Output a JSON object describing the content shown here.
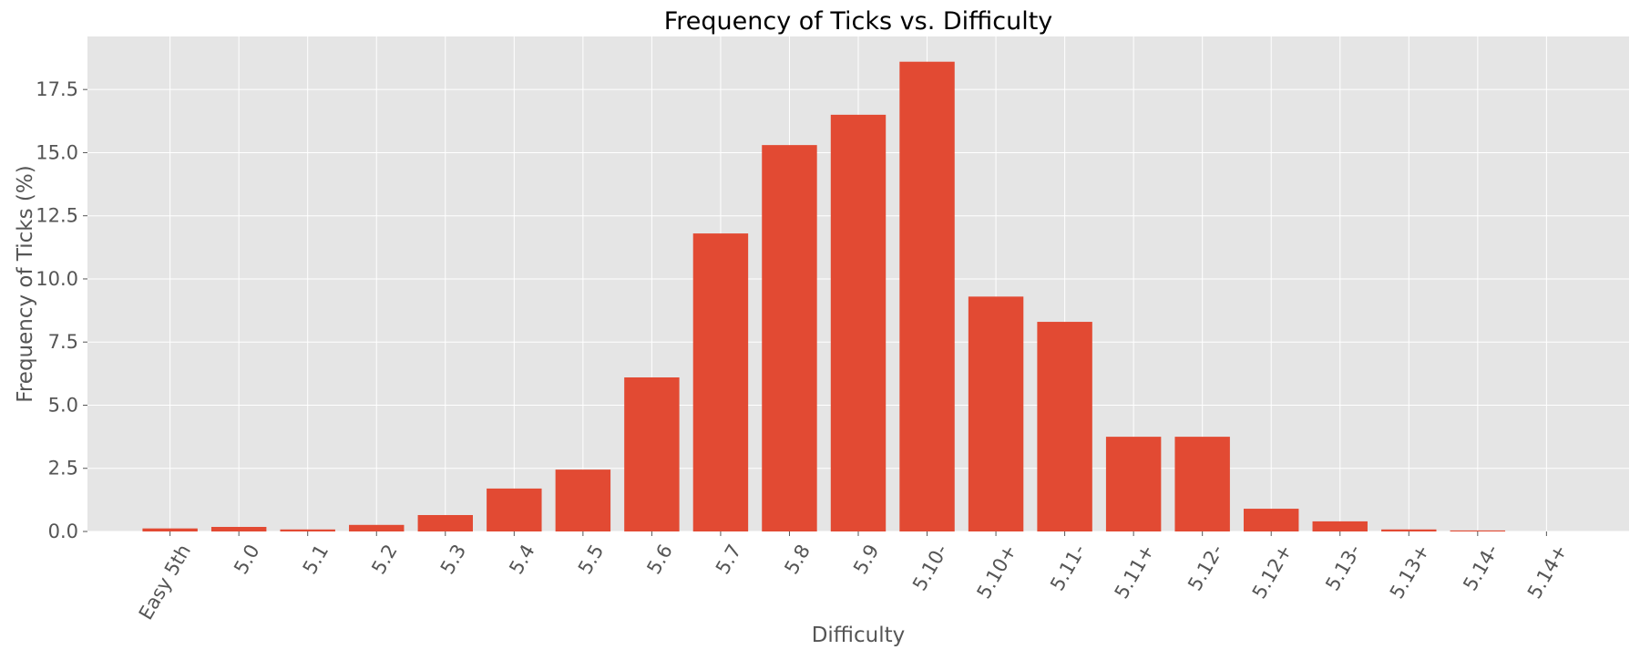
{
  "chart_data": {
    "type": "bar",
    "title": "Frequency of Ticks vs. Difficulty",
    "xlabel": "Difficulty",
    "ylabel": "Frequency of Ticks (%)",
    "categories": [
      "Easy 5th",
      "5.0",
      "5.1",
      "5.2",
      "5.3",
      "5.4",
      "5.5",
      "5.6",
      "5.7",
      "5.8",
      "5.9",
      "5.10-",
      "5.10+",
      "5.11-",
      "5.11+",
      "5.12-",
      "5.12+",
      "5.13-",
      "5.13+",
      "5.14-",
      "5.14+"
    ],
    "values": [
      0.12,
      0.18,
      0.08,
      0.26,
      0.65,
      1.7,
      2.45,
      6.1,
      11.8,
      15.3,
      16.5,
      18.6,
      9.3,
      8.3,
      3.75,
      3.75,
      0.9,
      0.4,
      0.08,
      0.04,
      0.0
    ],
    "ylim": [
      0,
      19.6
    ],
    "yticks": [
      0.0,
      2.5,
      5.0,
      7.5,
      10.0,
      12.5,
      15.0,
      17.5
    ],
    "ytick_labels": [
      "0.0",
      "2.5",
      "5.0",
      "7.5",
      "10.0",
      "12.5",
      "15.0",
      "17.5"
    ],
    "grid": true,
    "colors": {
      "bar": "#E24A33",
      "plot_background": "#E5E5E5",
      "grid": "#FFFFFF",
      "text": "#555555",
      "title": "#000000"
    }
  }
}
